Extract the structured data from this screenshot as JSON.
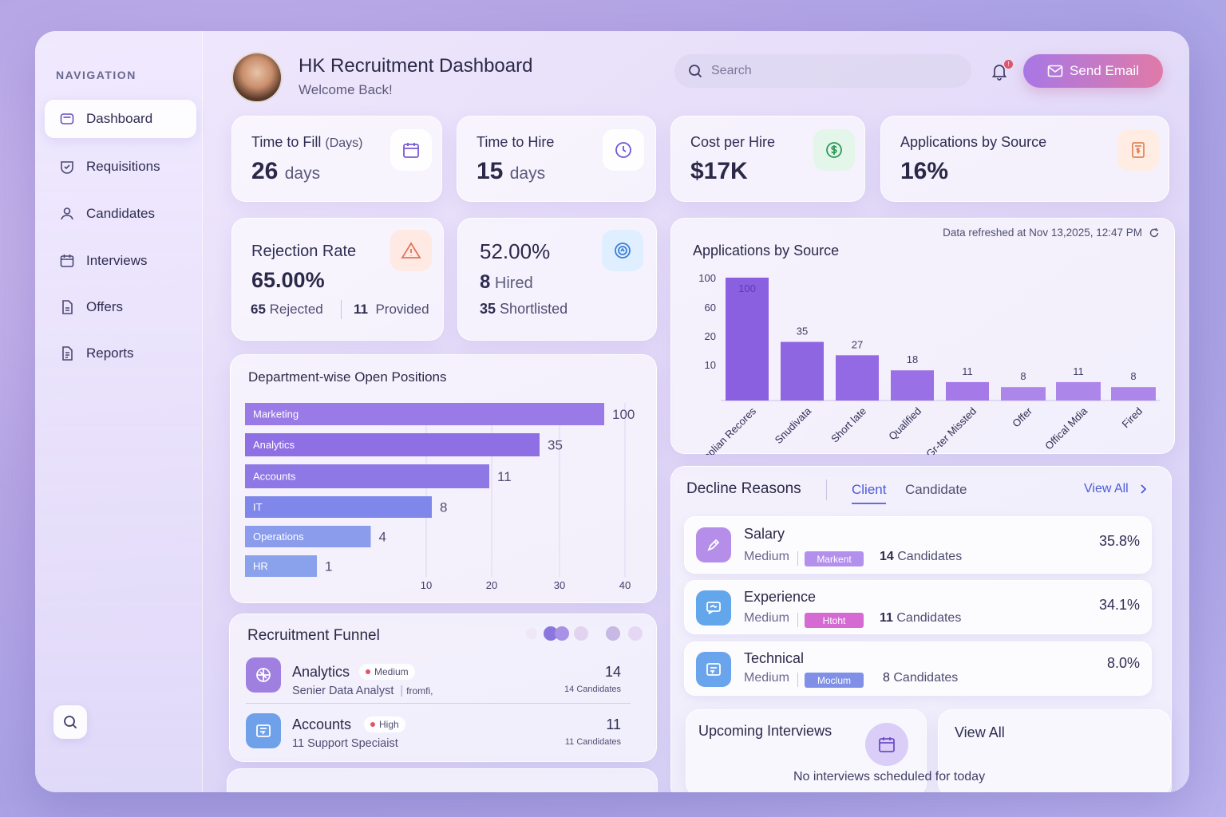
{
  "header": {
    "title": "HK Recruitment Dashboard",
    "subtitle": "Welcome Back!",
    "search_placeholder": "Search",
    "notification_count": "!",
    "send_email_label": "Send Email"
  },
  "sidebar": {
    "title": "NAVIGATION",
    "items": [
      {
        "label": "Dashboard",
        "icon": "dashboard-icon"
      },
      {
        "label": "Requisitions",
        "icon": "requisitions-icon"
      },
      {
        "label": "Candidates",
        "icon": "user-icon"
      },
      {
        "label": "Interviews",
        "icon": "calendar-icon"
      },
      {
        "label": "Offers",
        "icon": "document-icon"
      },
      {
        "label": "Reports",
        "icon": "report-icon"
      }
    ],
    "active_index": 0
  },
  "kpis": {
    "time_to_fill": {
      "label": "Time to Fill",
      "qualifier": "(Days)",
      "value": "26",
      "unit": "days",
      "icon": "calendar-icon"
    },
    "time_to_hire": {
      "label": "Time to Hire",
      "value": "15",
      "unit": "days",
      "icon": "clock-icon"
    },
    "cost_per_hire": {
      "label": "Cost per Hire",
      "value": "$17K",
      "icon": "dollar-icon"
    },
    "applications_by_source": {
      "label": "Applications by Source",
      "value": "16%",
      "icon": "document-dollar-icon"
    },
    "rejection_rate": {
      "label": "Rejection Rate",
      "value": "65.00%",
      "rejected_num": "65",
      "rejected_label": "Rejected",
      "provided_num": "11",
      "provided_label": "Provided",
      "icon": "warning-icon"
    },
    "hire_rate": {
      "value": "52.00%",
      "hired_num": "8",
      "hired_label": "Hired",
      "shortlisted_num": "35",
      "shortlisted_label": "Shortlisted",
      "icon": "target-icon"
    }
  },
  "source_chart": {
    "refreshed": "Data refreshed at Nov 13,2025, 12:47 PM",
    "chart_data": {
      "type": "bar",
      "title": "Applications by Source",
      "categories": [
        "Applian Recores",
        "Snudivata",
        "Short late",
        "Qualified",
        "Gr-ter Missted",
        "Offer",
        "Offical Mdia",
        "Fired"
      ],
      "values": [
        100,
        35,
        27,
        18,
        11,
        8,
        11,
        8
      ],
      "y_ticks": [
        "100",
        "60",
        "20",
        "10"
      ],
      "colors": [
        "#8a5fe0",
        "#8f66e2",
        "#9469e4",
        "#9a70e6",
        "#a57ae8",
        "#ad86ea",
        "#ad86ea",
        "#ad86ea"
      ]
    }
  },
  "department_chart": {
    "chart_data": {
      "type": "bar",
      "orientation": "horizontal",
      "title": "Department-wise Open Positions",
      "categories": [
        "Marketing",
        "Analytics",
        "Accounts",
        "IT",
        "Operations",
        "HR"
      ],
      "values": [
        100,
        35,
        11,
        8,
        4,
        1
      ],
      "x_ticks": [
        "10",
        "20",
        "30",
        "40"
      ],
      "colors": [
        "#9a7ae6",
        "#8f6fe4",
        "#8d78e6",
        "#7f88ea",
        "#8a9ceb",
        "#8aa2ec"
      ]
    }
  },
  "funnel": {
    "title": "Recruitment Funnel",
    "rows": [
      {
        "dept": "Analytics",
        "priority": "Medium",
        "role": "Senier Data Analyst",
        "note": "fromfi,",
        "count": "14",
        "count_label": "14 Candidates",
        "icon": "analytics-icon",
        "color": "#9f7fe0"
      },
      {
        "dept": "Accounts",
        "priority": "High",
        "role": "11 Support Speciaist",
        "note": "",
        "count": "11",
        "count_label": "11 Candidates",
        "icon": "accounts-icon",
        "color": "#6fa0ea"
      }
    ]
  },
  "decline": {
    "title": "Decline Reasons",
    "tabs": [
      "Client",
      "Candidate"
    ],
    "active_tab": 0,
    "view_all": "View All",
    "reasons": [
      {
        "name": "Salary",
        "level": "Medium",
        "tag": "Markent",
        "tag_color": "#b290ec",
        "count_num": "14",
        "count_label": "Candidates",
        "pct": "35.8%",
        "icon": "pencil-icon",
        "icon_color": "#b48ee8"
      },
      {
        "name": "Experience",
        "level": "Medium",
        "tag": "Htoht",
        "tag_color": "#d56ad2",
        "count_num": "11",
        "count_label": "Candidates",
        "pct": "34.1%",
        "icon": "chat-icon",
        "icon_color": "#62a6ec"
      },
      {
        "name": "Technical",
        "level": "Medium",
        "tag": "Moclum",
        "tag_color": "#7f90e6",
        "count_num": "8",
        "count_label": "Candidates",
        "pct": "8.0%",
        "icon": "code-icon",
        "icon_color": "#6aa4ec"
      }
    ]
  },
  "interviews": {
    "title": "Upcoming Interviews",
    "empty": "No interviews scheduled for today",
    "view_all": "View All"
  }
}
